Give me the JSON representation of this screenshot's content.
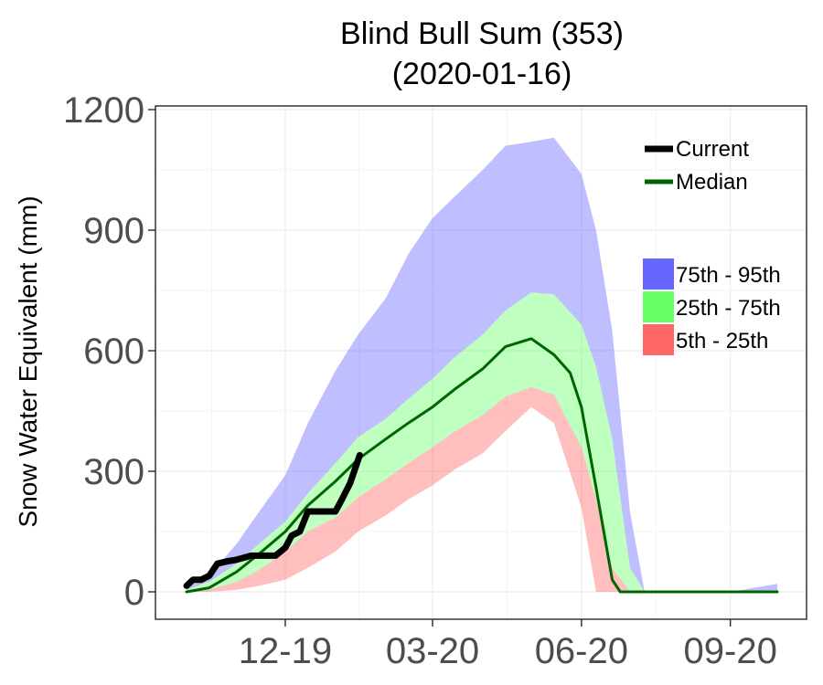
{
  "chart_data": {
    "type": "area",
    "title": "Blind Bull Sum (353)",
    "subtitle": "(2020-01-16)",
    "xlabel": "",
    "ylabel": "Snow Water Equivalent (mm)",
    "x_range": [
      "2019-10-01",
      "2020-09-30"
    ],
    "xticks": [
      {
        "label": "12-19",
        "date": "2019-12-01"
      },
      {
        "label": "03-20",
        "date": "2020-03-01"
      },
      {
        "label": "06-20",
        "date": "2020-06-01"
      },
      {
        "label": "09-20",
        "date": "2020-09-01"
      }
    ],
    "ylim": [
      -50,
      1200
    ],
    "yticks": [
      0,
      300,
      600,
      900,
      1200
    ],
    "grid": true,
    "legend": {
      "placement": "top-right",
      "lines": [
        {
          "name": "Current",
          "color": "#000000"
        },
        {
          "name": "Median",
          "color": "#006400"
        }
      ],
      "bands": [
        {
          "name": "75th - 95th",
          "color": "#6666ff"
        },
        {
          "name": "25th - 75th",
          "color": "#66ff66"
        },
        {
          "name": "5th - 25th",
          "color": "#ff6666"
        }
      ]
    },
    "band_x": [
      "2019-10-01",
      "2019-10-15",
      "2019-11-01",
      "2019-11-15",
      "2019-12-01",
      "2019-12-15",
      "2020-01-01",
      "2020-01-15",
      "2020-02-01",
      "2020-02-15",
      "2020-03-01",
      "2020-03-15",
      "2020-04-01",
      "2020-04-15",
      "2020-05-01",
      "2020-05-15",
      "2020-06-01",
      "2020-06-10",
      "2020-06-20",
      "2020-07-01",
      "2020-07-10",
      "2020-07-20",
      "2020-08-01",
      "2020-09-01",
      "2020-09-30"
    ],
    "p5": [
      0,
      0,
      5,
      15,
      30,
      60,
      100,
      150,
      190,
      230,
      265,
      305,
      345,
      400,
      460,
      420,
      210,
      0,
      0,
      0,
      0,
      0,
      0,
      0,
      0
    ],
    "p25": [
      0,
      5,
      25,
      55,
      100,
      150,
      185,
      235,
      280,
      320,
      360,
      400,
      440,
      485,
      510,
      490,
      360,
      230,
      60,
      0,
      0,
      0,
      0,
      0,
      0
    ],
    "p75": [
      5,
      25,
      70,
      120,
      175,
      245,
      320,
      385,
      430,
      480,
      530,
      585,
      640,
      700,
      745,
      740,
      665,
      560,
      380,
      60,
      0,
      0,
      0,
      0,
      0
    ],
    "p95": [
      10,
      40,
      120,
      200,
      290,
      420,
      550,
      640,
      730,
      840,
      930,
      985,
      1050,
      1110,
      1120,
      1130,
      1040,
      900,
      650,
      200,
      0,
      0,
      0,
      0,
      20
    ],
    "series": [
      {
        "name": "Median",
        "x": [
          "2019-10-01",
          "2019-10-15",
          "2019-11-01",
          "2019-11-15",
          "2019-12-01",
          "2019-12-15",
          "2020-01-01",
          "2020-01-15",
          "2020-02-01",
          "2020-02-15",
          "2020-03-01",
          "2020-03-15",
          "2020-04-01",
          "2020-04-15",
          "2020-05-01",
          "2020-05-15",
          "2020-05-25",
          "2020-06-01",
          "2020-06-10",
          "2020-06-20",
          "2020-06-25",
          "2020-07-01",
          "2020-09-30"
        ],
        "values": [
          0,
          10,
          50,
          95,
          150,
          215,
          275,
          330,
          380,
          420,
          460,
          505,
          555,
          610,
          630,
          590,
          545,
          460,
          260,
          30,
          0,
          0,
          0
        ]
      },
      {
        "name": "Current",
        "x": [
          "2019-10-01",
          "2019-10-05",
          "2019-10-10",
          "2019-10-15",
          "2019-10-20",
          "2019-10-25",
          "2019-11-01",
          "2019-11-10",
          "2019-11-20",
          "2019-11-25",
          "2019-12-01",
          "2019-12-05",
          "2019-12-10",
          "2019-12-15",
          "2019-12-20",
          "2020-01-01",
          "2020-01-05",
          "2020-01-10",
          "2020-01-16"
        ],
        "values": [
          15,
          30,
          30,
          40,
          70,
          75,
          80,
          90,
          90,
          90,
          110,
          140,
          150,
          200,
          200,
          200,
          230,
          270,
          340
        ]
      }
    ]
  }
}
